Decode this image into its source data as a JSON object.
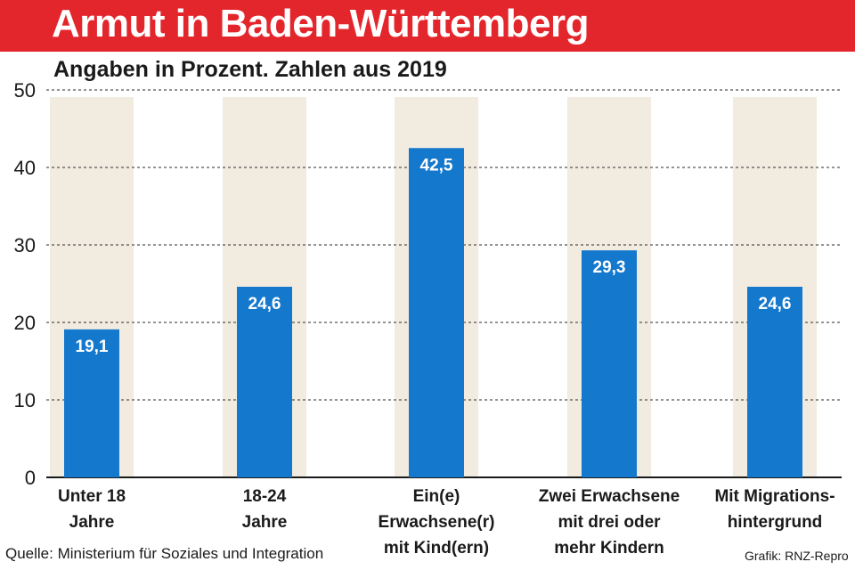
{
  "header": {
    "title": "Armut in Baden-Württemberg",
    "subtitle": "Angaben in Prozent. Zahlen aus 2019"
  },
  "colors": {
    "title_bar": "#e3262c",
    "bar": "#1478cc",
    "column_band": "#f1ebe0",
    "grid": "#555555"
  },
  "chart_data": {
    "type": "bar",
    "title": "Armut in Baden-Württemberg",
    "subtitle": "Angaben in Prozent. Zahlen aus 2019",
    "categories": [
      [
        "Unter 18",
        "Jahre"
      ],
      [
        "18-24",
        "Jahre"
      ],
      [
        "Ein(e)",
        "Erwachsene(r)",
        "mit Kind(ern)"
      ],
      [
        "Zwei Erwachsene",
        "mit drei oder",
        "mehr Kindern"
      ],
      [
        "Mit Migrations-",
        "hintergrund"
      ]
    ],
    "values": [
      19.1,
      24.6,
      42.5,
      29.3,
      24.6
    ],
    "value_labels": [
      "19,1",
      "24,6",
      "42,5",
      "29,3",
      "24,6"
    ],
    "ylim": [
      0,
      50
    ],
    "yticks": [
      0,
      10,
      20,
      30,
      40,
      50
    ],
    "grid": true,
    "xlabel": "",
    "ylabel": ""
  },
  "footer": {
    "source": "Quelle: Ministerium für Soziales und Integration",
    "credit": "Grafik: RNZ-Repro"
  }
}
